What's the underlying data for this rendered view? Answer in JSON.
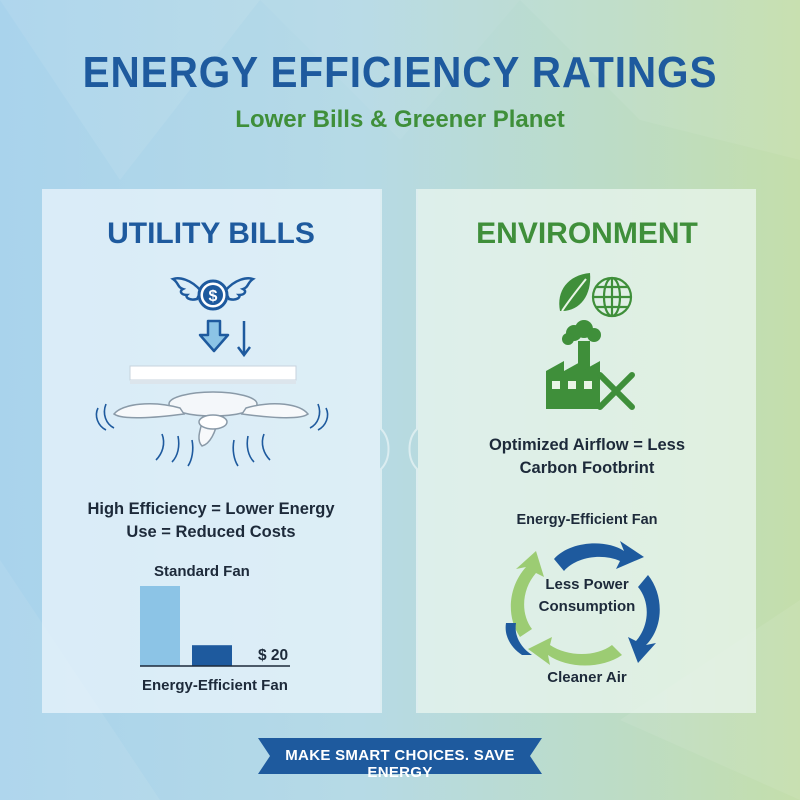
{
  "header": {
    "title": "ENERGY EFFICIENCY RATINGS",
    "subtitle": "Lower Bills & Greener Planet"
  },
  "utility": {
    "title": "UTILITY BILLS",
    "caption_line1": "High Efficiency = Lower Energy",
    "caption_line2": "Use = Reduced Costs",
    "standard_label": "Standard Fan",
    "efficient_label": "Energy-Efficient Fan",
    "efficient_cost": "$ 20",
    "bars": [
      {
        "name": "Standard Fan",
        "relative_value": 1.0,
        "color": "#8cc4e6"
      },
      {
        "name": "Energy-Efficient Fan",
        "relative_value": 0.26,
        "color": "#1e5a9e"
      }
    ]
  },
  "environment": {
    "title": "ENVIRONMENT",
    "caption_line1": "Optimized Airflow = Less",
    "caption_line2": "Carbon Footbrint",
    "cycle_top": "Energy-Efficient Fan",
    "cycle_center_line1": "Less Power",
    "cycle_center_line2": "Consumption",
    "cycle_bottom": "Cleaner Air"
  },
  "footer": {
    "banner": "MAKE SMART CHOICES. SAVE ENERGY"
  },
  "colors": {
    "blue": "#1e5a9e",
    "light_blue": "#8cc4e6",
    "green": "#3f8f3a",
    "light_green": "#9ccc73",
    "text_dark": "#1d2a3a"
  },
  "icons": [
    "winged-dollar-icon",
    "down-arrow-icon",
    "ceiling-fan-icon",
    "leaf-icon",
    "globe-icon",
    "factory-icon",
    "cross-icon",
    "recycle-cycle-icon"
  ]
}
